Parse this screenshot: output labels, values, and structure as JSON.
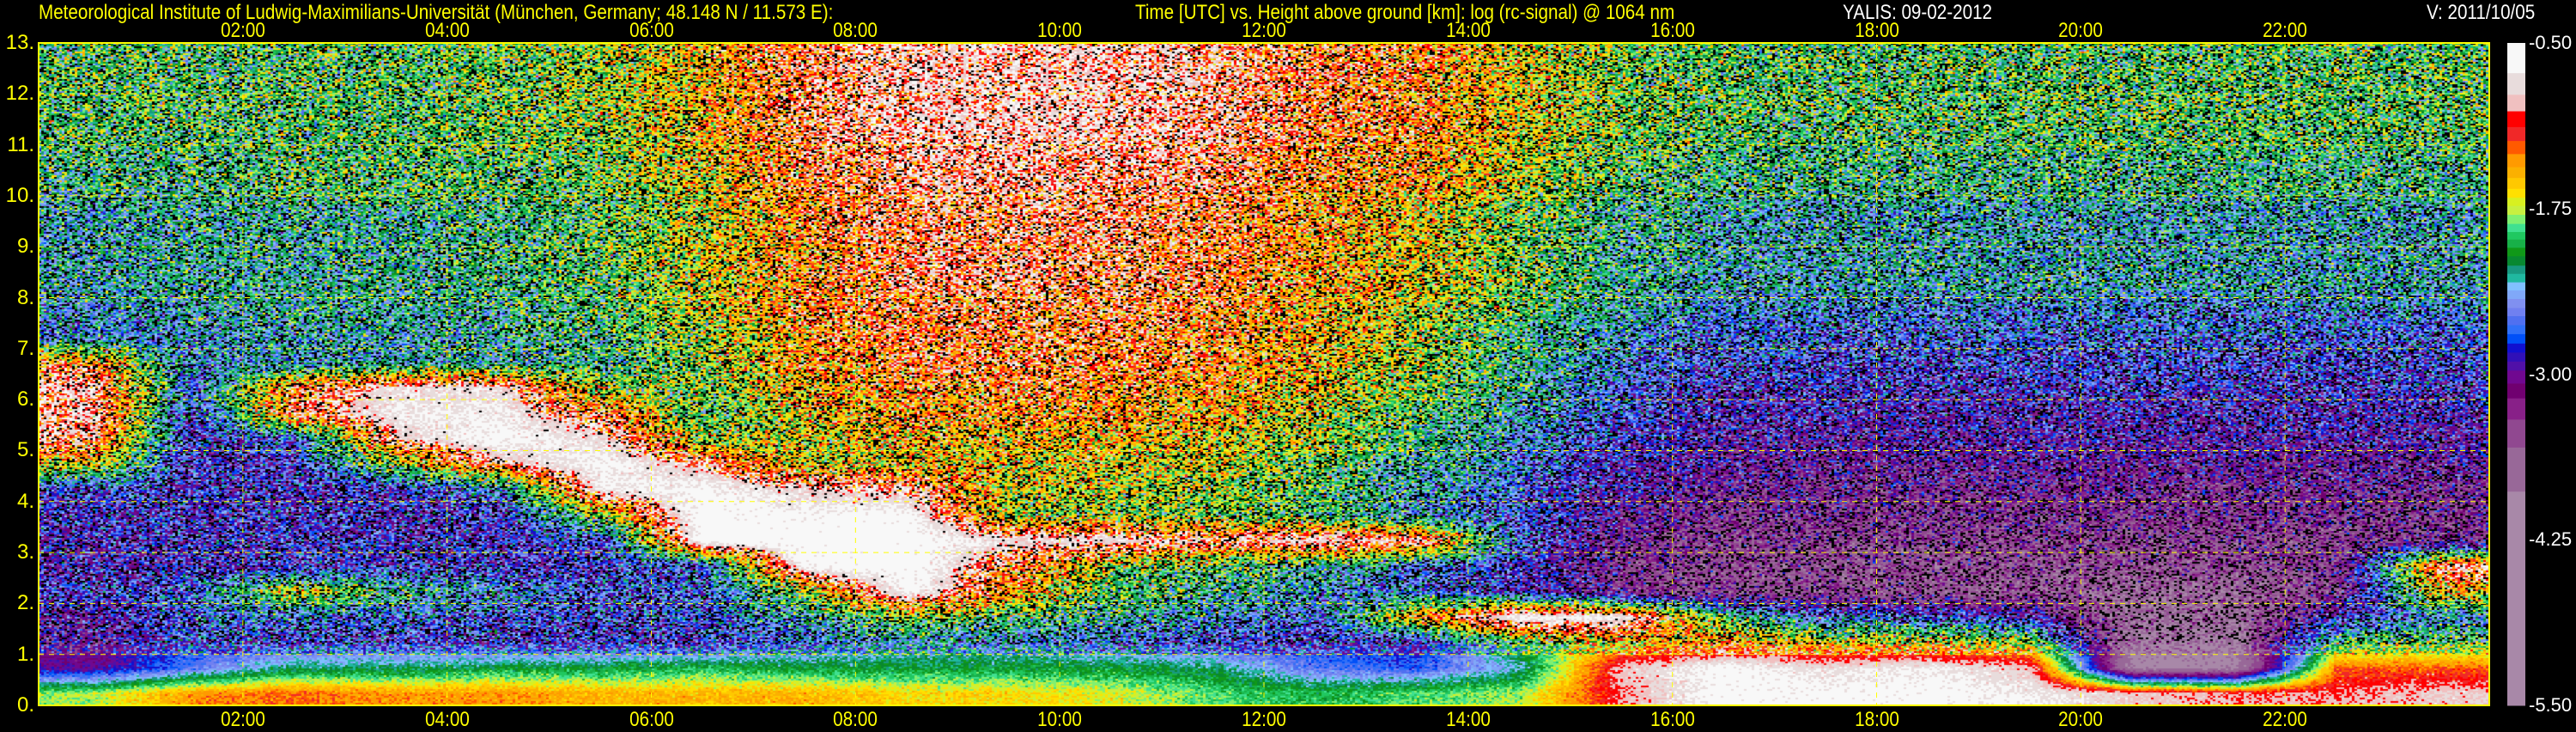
{
  "header": {
    "institute": "Meteorological Institute of Ludwig-Maximilians-Universität (München, Germany; 48.148 N / 11.573 E):",
    "plot_description": "Time [UTC] vs. Height above ground [km]: log (rc-signal) @ 1064 nm",
    "instrument_date": "YALIS: 09-02-2012",
    "version": "V: 2011/10/05"
  },
  "chart_data": {
    "type": "heatmap",
    "xlim": [
      0,
      24
    ],
    "ylim": [
      0,
      13
    ],
    "grid": true,
    "x_ticks": [
      {
        "hour": 2,
        "label": "02:00"
      },
      {
        "hour": 4,
        "label": "04:00"
      },
      {
        "hour": 6,
        "label": "06:00"
      },
      {
        "hour": 8,
        "label": "08:00"
      },
      {
        "hour": 10,
        "label": "10:00"
      },
      {
        "hour": 12,
        "label": "12:00"
      },
      {
        "hour": 14,
        "label": "14:00"
      },
      {
        "hour": 16,
        "label": "16:00"
      },
      {
        "hour": 18,
        "label": "18:00"
      },
      {
        "hour": 20,
        "label": "20:00"
      },
      {
        "hour": 22,
        "label": "22:00"
      }
    ],
    "y_ticks": [
      "0.",
      "1.",
      "2.",
      "3.",
      "4.",
      "5.",
      "6.",
      "7.",
      "8.",
      "9.",
      "10.",
      "11.",
      "12.",
      "13."
    ],
    "colorbar": {
      "range": [
        -5.5,
        -0.5
      ],
      "ticks": [
        {
          "value": -0.5,
          "label": "-0.50"
        },
        {
          "value": -1.75,
          "label": "-1.75"
        },
        {
          "value": -3.0,
          "label": "-3.00"
        },
        {
          "value": -4.25,
          "label": "-4.25"
        },
        {
          "value": -5.5,
          "label": "-5.50"
        }
      ],
      "band_edges": [
        -0.5,
        -0.728,
        -0.891,
        -1.016,
        -1.135,
        -1.24,
        -1.339,
        -1.438,
        -1.519,
        -1.601,
        -1.668,
        -1.73,
        -1.797,
        -1.866,
        -1.927,
        -1.984,
        -2.046,
        -2.11,
        -2.181,
        -2.243,
        -2.307,
        -2.368,
        -2.433,
        -2.501,
        -2.562,
        -2.63,
        -2.698,
        -2.769,
        -2.837,
        -2.905,
        -2.973,
        -3.071,
        -3.183,
        -3.343,
        -3.554,
        -3.887,
        -5.5
      ],
      "colors": [
        "#f8f8f8",
        "#e8dcdc",
        "#f0c0c0",
        "#ff0000",
        "#f02828",
        "#ff5a00",
        "#ff9a00",
        "#fbb000",
        "#ffc800",
        "#ffe000",
        "#d8f020",
        "#c8f040",
        "#80f070",
        "#40e090",
        "#20c860",
        "#18b048",
        "#109818",
        "#088830",
        "#189880",
        "#20b8a0",
        "#80c0ff",
        "#80a8f8",
        "#8090f0",
        "#7080f0",
        "#5070f0",
        "#3070f8",
        "#0050f8",
        "#1010d0",
        "#3010b8",
        "#5010a8",
        "#700890",
        "#700070",
        "#882088",
        "#904890",
        "#986898",
        "#a888a8"
      ]
    },
    "time_bin_start_hours": [
      0,
      1,
      2,
      3,
      4,
      5,
      6,
      7,
      8,
      9,
      10,
      11,
      12,
      13,
      14,
      15,
      16,
      17,
      18,
      19,
      20,
      21,
      22,
      23
    ],
    "height_bin_bottom_km": [
      0,
      0.5,
      1,
      1.5,
      2,
      2.5,
      3,
      3.5,
      4,
      4.5,
      5,
      5.5,
      6,
      6.5,
      7,
      7.5,
      8,
      8.5,
      9,
      9.5,
      10,
      10.5,
      11,
      11.5,
      12,
      12.5
    ],
    "values": [
      [
        -1.8,
        -1.4,
        -1.3,
        -1.4,
        -1.4,
        -1.5,
        -1.5,
        -1.5,
        -1.6,
        -1.6,
        -1.7,
        -1.9,
        -2.0,
        -1.9,
        -1.8,
        -1.0,
        -0.6,
        -0.6,
        -0.6,
        -0.7,
        -0.9,
        -1.0,
        -1.0,
        -0.9
      ],
      [
        -3.0,
        -2.6,
        -2.2,
        -2.2,
        -2.1,
        -2.1,
        -2.0,
        -2.1,
        -2.1,
        -2.1,
        -2.1,
        -2.2,
        -2.6,
        -2.7,
        -2.3,
        -0.9,
        -0.6,
        -0.8,
        -0.7,
        -0.9,
        -4.0,
        -4.0,
        -1.3,
        -1.3
      ],
      [
        -3.1,
        -2.7,
        -2.7,
        -2.7,
        -2.8,
        -2.8,
        -2.8,
        -2.6,
        -2.4,
        -2.4,
        -2.6,
        -2.7,
        -2.8,
        -2.8,
        -2.0,
        -1.6,
        -1.4,
        -1.6,
        -1.6,
        -1.8,
        -3.9,
        -3.9,
        -2.0,
        -2.0
      ],
      [
        -3.0,
        -2.6,
        -2.5,
        -2.6,
        -2.7,
        -2.7,
        -2.6,
        -2.3,
        -1.8,
        -2.0,
        -2.2,
        -2.4,
        -2.6,
        -1.4,
        -0.6,
        -0.7,
        -2.0,
        -2.6,
        -2.6,
        -2.9,
        -3.8,
        -3.8,
        -2.8,
        -2.4
      ],
      [
        -2.7,
        -2.6,
        -1.6,
        -2.1,
        -2.4,
        -2.6,
        -2.6,
        -1.8,
        -0.6,
        -1.4,
        -2.0,
        -2.2,
        -2.4,
        -2.6,
        -2.8,
        -3.3,
        -3.5,
        -3.5,
        -3.6,
        -3.6,
        -3.7,
        -3.7,
        -3.4,
        -1.5
      ],
      [
        -2.9,
        -2.8,
        -2.8,
        -2.8,
        -2.8,
        -2.8,
        -2.6,
        -0.6,
        -0.5,
        -1.2,
        -1.8,
        -2.0,
        -2.2,
        -2.5,
        -2.8,
        -3.3,
        -3.5,
        -3.5,
        -3.5,
        -3.5,
        -3.5,
        -3.5,
        -3.3,
        -1.0
      ],
      [
        -2.9,
        -2.8,
        -2.8,
        -2.8,
        -2.8,
        -2.7,
        -0.5,
        -0.5,
        -0.5,
        -0.8,
        -0.8,
        -1.0,
        -0.8,
        -0.9,
        -2.6,
        -3.2,
        -3.4,
        -3.4,
        -3.4,
        -3.4,
        -3.4,
        -3.4,
        -3.4,
        -3.3
      ],
      [
        -2.8,
        -2.8,
        -2.8,
        -2.8,
        -2.8,
        -1.8,
        -0.5,
        -0.6,
        -0.6,
        -1.8,
        -1.8,
        -1.9,
        -2.1,
        -2.4,
        -2.7,
        -3.1,
        -3.3,
        -3.3,
        -3.3,
        -3.3,
        -3.3,
        -3.3,
        -3.3,
        -3.3
      ],
      [
        -2.7,
        -2.8,
        -2.8,
        -2.8,
        -2.5,
        -0.7,
        -0.6,
        -0.9,
        -1.0,
        -1.7,
        -1.7,
        -1.8,
        -2.0,
        -2.3,
        -2.6,
        -3.0,
        -3.2,
        -3.2,
        -3.2,
        -3.2,
        -3.2,
        -3.2,
        -3.2,
        -3.2
      ],
      [
        -1.6,
        -2.8,
        -2.8,
        -1.8,
        -1.0,
        -0.6,
        -1.0,
        -1.7,
        -1.6,
        -1.6,
        -1.6,
        -1.7,
        -1.9,
        -2.2,
        -2.5,
        -2.9,
        -3.1,
        -3.1,
        -3.1,
        -3.1,
        -3.1,
        -3.1,
        -3.1,
        -3.1
      ],
      [
        -1.0,
        -2.8,
        -2.6,
        -0.9,
        -0.6,
        -0.8,
        -1.8,
        -1.7,
        -1.5,
        -1.5,
        -1.5,
        -1.6,
        -1.8,
        -2.1,
        -2.4,
        -2.8,
        -3.0,
        -3.0,
        -3.0,
        -3.0,
        -3.0,
        -3.0,
        -3.0,
        -3.0
      ],
      [
        -0.9,
        -2.7,
        -1.1,
        -0.7,
        -0.7,
        -1.2,
        -2.0,
        -1.6,
        -1.4,
        -1.4,
        -1.4,
        -1.5,
        -1.7,
        -2.0,
        -2.3,
        -2.7,
        -2.9,
        -2.9,
        -2.9,
        -2.9,
        -2.9,
        -2.9,
        -2.9,
        -2.9
      ],
      [
        -0.9,
        -2.6,
        -1.2,
        -0.8,
        -0.8,
        -1.8,
        -1.9,
        -1.5,
        -1.3,
        -1.3,
        -1.3,
        -1.4,
        -1.6,
        -1.9,
        -2.2,
        -2.6,
        -2.8,
        -2.8,
        -2.8,
        -2.8,
        -2.8,
        -2.8,
        -2.8,
        -2.8
      ],
      [
        -1.3,
        -2.5,
        -2.4,
        -2.3,
        -2.3,
        -2.2,
        -1.8,
        -1.4,
        -1.2,
        -1.2,
        -1.2,
        -1.3,
        -1.5,
        -1.8,
        -2.1,
        -2.5,
        -2.7,
        -2.7,
        -2.7,
        -2.7,
        -2.7,
        -2.7,
        -2.7,
        -2.7
      ],
      [
        -2.5,
        -2.4,
        -2.3,
        -2.3,
        -2.2,
        -2.1,
        -1.8,
        -1.4,
        -1.2,
        -1.2,
        -1.2,
        -1.3,
        -1.5,
        -1.8,
        -2.1,
        -2.4,
        -2.6,
        -2.6,
        -2.6,
        -2.6,
        -2.6,
        -2.6,
        -2.6,
        -2.6
      ],
      [
        -2.4,
        -2.3,
        -2.2,
        -2.2,
        -2.2,
        -2.0,
        -1.7,
        -1.3,
        -1.2,
        -1.2,
        -1.2,
        -1.3,
        -1.5,
        -1.7,
        -2.0,
        -2.3,
        -2.5,
        -2.5,
        -2.5,
        -2.5,
        -2.5,
        -2.5,
        -2.5,
        -2.5
      ],
      [
        -2.3,
        -2.2,
        -2.2,
        -2.2,
        -2.1,
        -2.0,
        -1.7,
        -1.3,
        -1.1,
        -1.1,
        -1.1,
        -1.2,
        -1.4,
        -1.6,
        -1.9,
        -2.2,
        -2.3,
        -2.3,
        -2.3,
        -2.3,
        -2.3,
        -2.3,
        -2.3,
        -2.3
      ],
      [
        -2.3,
        -2.2,
        -2.2,
        -2.2,
        -2.1,
        -2.0,
        -1.7,
        -1.3,
        -1.1,
        -1.1,
        -1.1,
        -1.2,
        -1.4,
        -1.6,
        -1.9,
        -2.2,
        -2.3,
        -2.3,
        -2.3,
        -2.3,
        -2.3,
        -2.3,
        -2.3,
        -2.3
      ],
      [
        -2.3,
        -2.2,
        -2.2,
        -2.2,
        -2.1,
        -2.0,
        -1.7,
        -1.3,
        -1.1,
        -1.1,
        -1.1,
        -1.2,
        -1.4,
        -1.6,
        -1.9,
        -2.2,
        -2.3,
        -2.3,
        -2.3,
        -2.3,
        -2.3,
        -2.3,
        -2.3,
        -2.3
      ],
      [
        -2.3,
        -2.2,
        -2.2,
        -2.2,
        -2.1,
        -2.0,
        -1.7,
        -1.3,
        -1.1,
        -1.1,
        -1.1,
        -1.2,
        -1.4,
        -1.6,
        -1.9,
        -2.2,
        -2.3,
        -2.3,
        -2.3,
        -2.3,
        -2.3,
        -2.3,
        -2.3,
        -2.3
      ],
      [
        -2.1,
        -2.1,
        -2.0,
        -2.0,
        -2.0,
        -1.9,
        -1.6,
        -1.2,
        -1.0,
        -1.0,
        -1.0,
        -1.1,
        -1.3,
        -1.4,
        -1.7,
        -2.0,
        -2.1,
        -2.1,
        -2.1,
        -2.1,
        -2.1,
        -2.1,
        -2.1,
        -2.1
      ],
      [
        -2.1,
        -2.1,
        -2.0,
        -2.0,
        -2.0,
        -1.9,
        -1.6,
        -1.2,
        -1.0,
        -1.0,
        -1.0,
        -1.1,
        -1.3,
        -1.4,
        -1.7,
        -2.0,
        -2.1,
        -2.1,
        -2.1,
        -2.1,
        -2.1,
        -2.1,
        -2.1,
        -2.1
      ],
      [
        -2.0,
        -2.0,
        -2.0,
        -2.0,
        -1.9,
        -1.8,
        -1.5,
        -1.1,
        -0.9,
        -0.9,
        -0.9,
        -1.0,
        -1.2,
        -1.3,
        -1.6,
        -1.9,
        -2.0,
        -2.0,
        -2.0,
        -2.0,
        -2.0,
        -2.0,
        -2.0,
        -2.0
      ],
      [
        -2.0,
        -2.0,
        -2.0,
        -2.0,
        -1.9,
        -1.8,
        -1.5,
        -1.1,
        -0.9,
        -0.9,
        -0.9,
        -1.0,
        -1.2,
        -1.3,
        -1.6,
        -1.9,
        -2.0,
        -2.0,
        -2.0,
        -2.0,
        -2.0,
        -2.0,
        -2.0,
        -2.0
      ],
      [
        -2.0,
        -2.0,
        -2.0,
        -2.0,
        -1.9,
        -1.8,
        -1.5,
        -1.1,
        -0.9,
        -0.9,
        -0.9,
        -1.0,
        -1.2,
        -1.3,
        -1.6,
        -1.9,
        -2.0,
        -2.0,
        -2.0,
        -2.0,
        -2.0,
        -2.0,
        -2.0,
        -2.0
      ],
      [
        -2.0,
        -2.0,
        -2.0,
        -2.0,
        -1.9,
        -1.8,
        -1.5,
        -1.1,
        -0.9,
        -0.9,
        -0.9,
        -1.0,
        -1.2,
        -1.3,
        -1.6,
        -1.9,
        -2.0,
        -2.0,
        -2.0,
        -2.0,
        -2.0,
        -2.0,
        -2.0,
        -2.0
      ]
    ]
  }
}
